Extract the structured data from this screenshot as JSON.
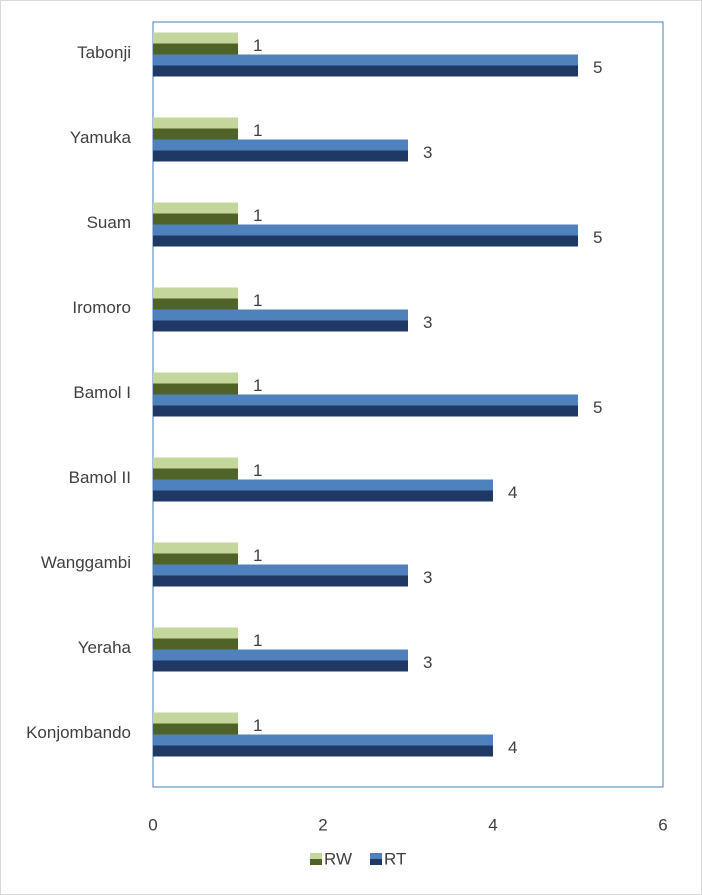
{
  "chart_data": {
    "type": "hbar",
    "categories": [
      "Tabonji",
      "Yamuka",
      "Suam",
      "Iromoro",
      "Bamol I",
      "Bamol II",
      "Wanggambi",
      "Yeraha",
      "Konjombando"
    ],
    "series": [
      {
        "name": "RW",
        "color": "#9bbb59",
        "values": [
          1,
          1,
          1,
          1,
          1,
          1,
          1,
          1,
          1
        ]
      },
      {
        "name": "RT",
        "color": "#4f81bd",
        "values": [
          5,
          3,
          5,
          3,
          5,
          4,
          3,
          3,
          4
        ]
      }
    ],
    "xlim": [
      0,
      6
    ],
    "xticks": [
      0,
      2,
      4,
      6
    ],
    "grid": false,
    "legend": "bottom"
  }
}
